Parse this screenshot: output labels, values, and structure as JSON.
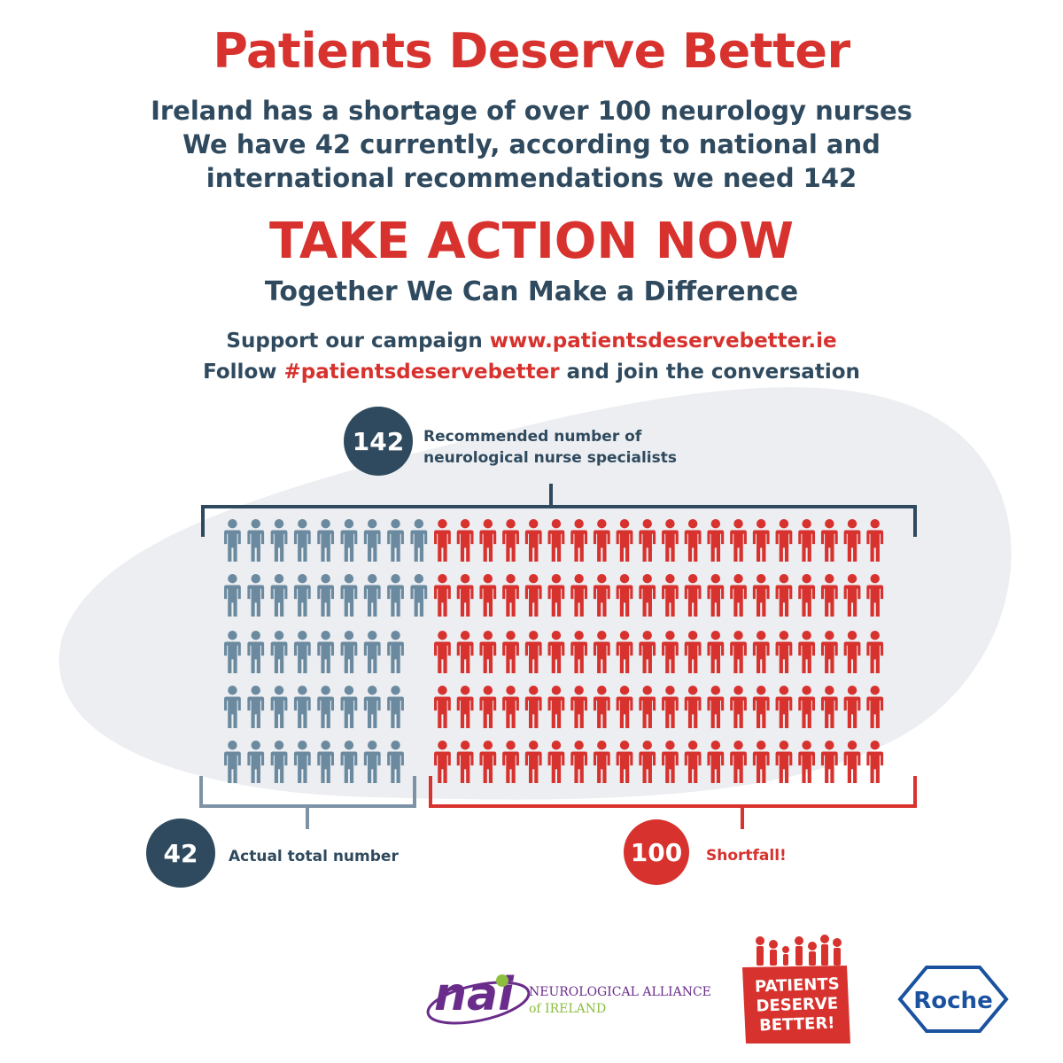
{
  "colors": {
    "red": "#d7322e",
    "navy": "#2f4a5e",
    "grey_figure": "#6b8aa0",
    "blob": "#eceef1",
    "bracket_grey": "#7d93a5",
    "nai_purple": "#6a2c8a",
    "nai_green": "#8cbe3f",
    "roche_blue": "#1a52a0"
  },
  "header": {
    "title": "Patients Deserve Better",
    "line1": "Ireland has a shortage of over 100 neurology nurses",
    "line2": "We have 42 currently, according to national and",
    "line3": "international recommendations we need 142",
    "cta": "TAKE ACTION NOW",
    "tagline": "Together We Can Make a Difference"
  },
  "campaign": {
    "support_prefix": "Support our campaign ",
    "support_link": "www.patientsdeservebetter.ie",
    "follow_prefix": "Follow ",
    "hashtag": "#patientsdeservebetter",
    "follow_suffix": " and join the conversation"
  },
  "infographic": {
    "recommended": {
      "number": "142",
      "label_line1": "Recommended number of",
      "label_line2": "neurological nurse specialists"
    },
    "actual": {
      "number": "42",
      "label": "Actual total number"
    },
    "shortfall": {
      "number": "100",
      "label": "Shortfall!"
    },
    "figure_counts": {
      "actual": 42,
      "shortfall": 100
    },
    "icons": {
      "person": "person-icon"
    }
  },
  "logos": {
    "nai": {
      "mark": "nai",
      "name_line1": "NEUROLOGICAL ALLIANCE",
      "name_line2": "of IRELAND"
    },
    "pdb": {
      "line1": "PATIENTS",
      "line2": "DESERVE",
      "line3": "BETTER!"
    },
    "roche": {
      "name": "Roche"
    }
  }
}
